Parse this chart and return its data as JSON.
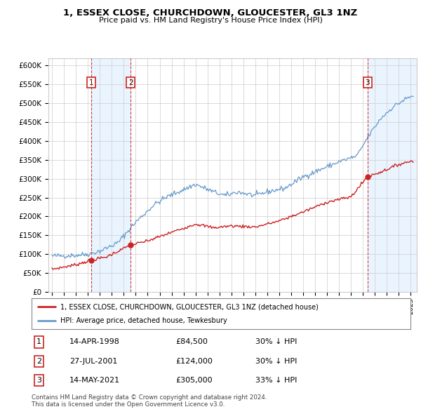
{
  "title": "1, ESSEX CLOSE, CHURCHDOWN, GLOUCESTER, GL3 1NZ",
  "subtitle": "Price paid vs. HM Land Registry's House Price Index (HPI)",
  "legend_label_red": "1, ESSEX CLOSE, CHURCHDOWN, GLOUCESTER, GL3 1NZ (detached house)",
  "legend_label_blue": "HPI: Average price, detached house, Tewkesbury",
  "footer1": "Contains HM Land Registry data © Crown copyright and database right 2024.",
  "footer2": "This data is licensed under the Open Government Licence v3.0.",
  "transactions": [
    {
      "num": 1,
      "date": "14-APR-1998",
      "price": 84500,
      "pct": "30% ↓ HPI",
      "year": 1998.29
    },
    {
      "num": 2,
      "date": "27-JUL-2001",
      "price": 124000,
      "pct": "30% ↓ HPI",
      "year": 2001.57
    },
    {
      "num": 3,
      "date": "14-MAY-2021",
      "price": 305000,
      "pct": "33% ↓ HPI",
      "year": 2021.37
    }
  ],
  "ylim": [
    0,
    620000
  ],
  "yticks": [
    0,
    50000,
    100000,
    150000,
    200000,
    250000,
    300000,
    350000,
    400000,
    450000,
    500000,
    550000,
    600000
  ],
  "xlim_start": 1994.7,
  "xlim_end": 2025.5,
  "background_color": "#ffffff",
  "grid_color": "#cccccc",
  "red_color": "#cc2222",
  "blue_color": "#6699cc",
  "shade_color": "#ddeeff",
  "hpi_anchors_x": [
    1995.0,
    1997.0,
    1998.0,
    1999.0,
    2000.5,
    2002.0,
    2003.5,
    2004.5,
    2007.0,
    2008.5,
    2009.5,
    2010.5,
    2012.0,
    2013.0,
    2014.5,
    2016.0,
    2017.5,
    2019.0,
    2020.5,
    2021.5,
    2022.5,
    2023.5,
    2024.5,
    2025.2
  ],
  "hpi_anchors_y": [
    95000,
    97000,
    100000,
    108000,
    130000,
    185000,
    230000,
    250000,
    285000,
    265000,
    255000,
    265000,
    255000,
    265000,
    275000,
    305000,
    325000,
    345000,
    360000,
    415000,
    460000,
    490000,
    510000,
    520000
  ],
  "red_anchors_x": [
    1995.0,
    1997.0,
    1998.29,
    1999.5,
    2001.57,
    2003.0,
    2005.0,
    2007.0,
    2008.5,
    2010.0,
    2012.0,
    2014.0,
    2016.0,
    2018.0,
    2020.0,
    2021.37,
    2022.5,
    2024.0,
    2025.2
  ],
  "red_anchors_y": [
    60000,
    72000,
    84500,
    92000,
    124000,
    135000,
    158000,
    180000,
    170000,
    175000,
    172000,
    188000,
    212000,
    238000,
    252000,
    305000,
    318000,
    338000,
    348000
  ]
}
